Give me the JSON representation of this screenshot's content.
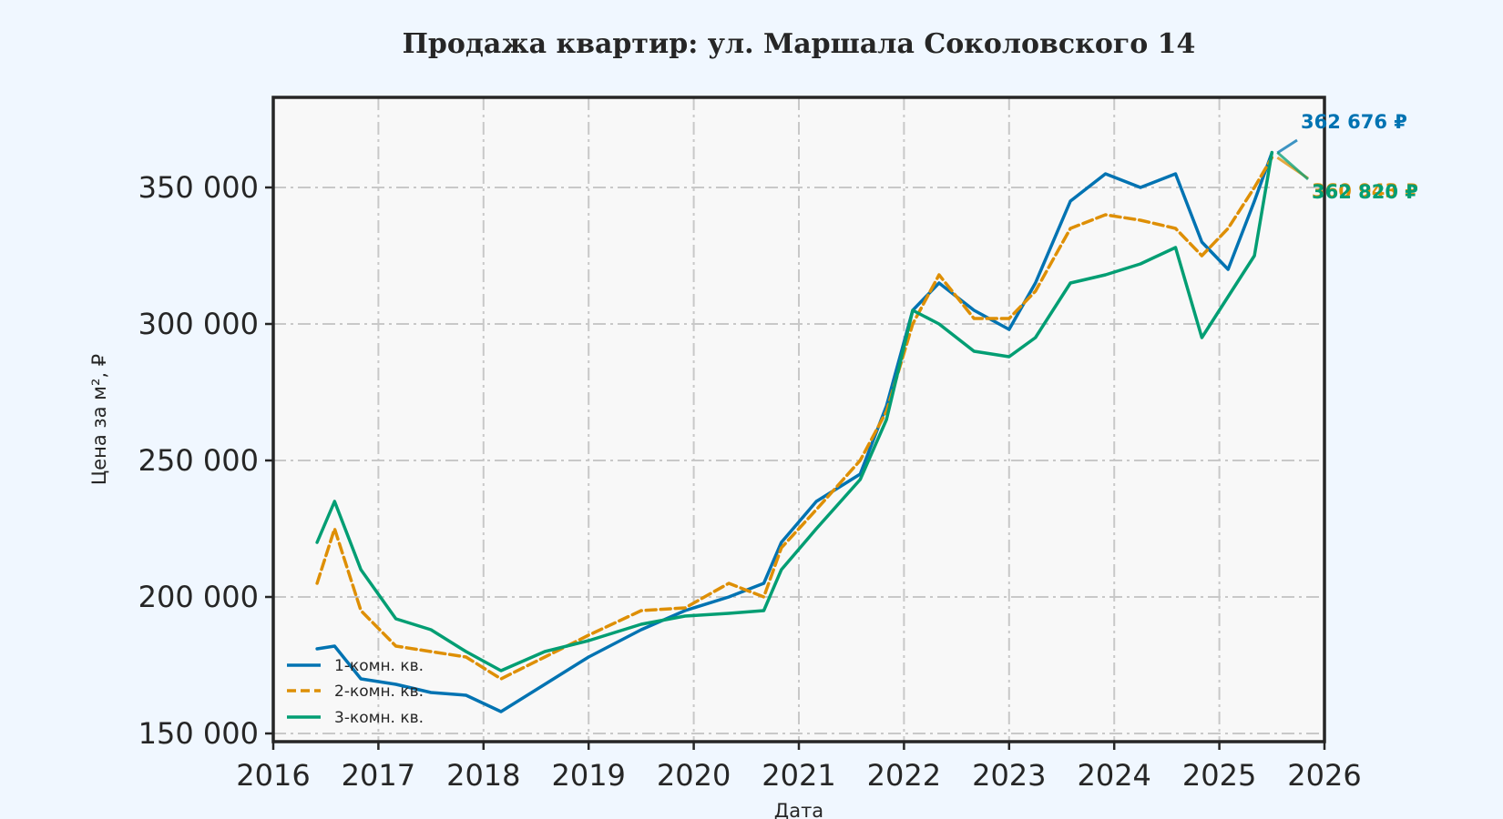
{
  "chart_data": {
    "type": "line",
    "title": "Продажа квартир: ул. Маршала Соколовского 14",
    "xlabel": "Дата",
    "ylabel": "Цена за м², ₽",
    "xlim": [
      2016,
      2026
    ],
    "ylim": [
      147000,
      383000
    ],
    "x_ticks": [
      "2016",
      "2017",
      "2018",
      "2019",
      "2020",
      "2021",
      "2022",
      "2023",
      "2024",
      "2025",
      "2026"
    ],
    "y_ticks": [
      {
        "value": 150000,
        "label": "150 000"
      },
      {
        "value": 200000,
        "label": "200 000"
      },
      {
        "value": 250000,
        "label": "250 000"
      },
      {
        "value": 300000,
        "label": "300 000"
      },
      {
        "value": 350000,
        "label": "350 000"
      }
    ],
    "grid": true,
    "legend_position": "lower-left",
    "series": [
      {
        "name": "1-комн. кв.",
        "color": "#0173b2",
        "dash": "solid",
        "x": [
          "2016-06",
          "2016-08",
          "2016-11",
          "2017-03",
          "2017-07",
          "2017-11",
          "2018-03",
          "2018-08",
          "2019-01",
          "2019-07",
          "2019-12",
          "2020-05",
          "2020-09",
          "2020-11",
          "2021-03",
          "2021-08",
          "2021-11",
          "2022-02",
          "2022-05",
          "2022-09",
          "2023-01",
          "2023-04",
          "2023-08",
          "2023-12",
          "2024-04",
          "2024-08",
          "2024-11",
          "2025-02",
          "2025-05",
          "2025-07"
        ],
        "y": [
          181000,
          182000,
          170000,
          168000,
          165000,
          164000,
          158000,
          168000,
          178000,
          188000,
          195000,
          200000,
          205000,
          220000,
          235000,
          245000,
          270000,
          305000,
          315000,
          305000,
          298000,
          315000,
          345000,
          355000,
          350000,
          355000,
          330000,
          320000,
          345000,
          362676
        ]
      },
      {
        "name": "2-комн. кв.",
        "color": "#de8f05",
        "dash": "dashed",
        "x": [
          "2016-06",
          "2016-08",
          "2016-11",
          "2017-03",
          "2017-07",
          "2017-11",
          "2018-03",
          "2018-08",
          "2019-01",
          "2019-07",
          "2019-12",
          "2020-05",
          "2020-09",
          "2020-11",
          "2021-03",
          "2021-08",
          "2021-11",
          "2022-02",
          "2022-05",
          "2022-09",
          "2023-01",
          "2023-04",
          "2023-08",
          "2023-12",
          "2024-04",
          "2024-08",
          "2024-11",
          "2025-02",
          "2025-05",
          "2025-07"
        ],
        "y": [
          205000,
          225000,
          195000,
          182000,
          180000,
          178000,
          170000,
          178000,
          186000,
          195000,
          196000,
          205000,
          200000,
          218000,
          232000,
          250000,
          268000,
          300000,
          318000,
          302000,
          302000,
          312000,
          335000,
          340000,
          338000,
          335000,
          325000,
          335000,
          350000,
          360943
        ]
      },
      {
        "name": "3-комн. кв.",
        "color": "#029e73",
        "dash": "solid",
        "x": [
          "2016-06",
          "2016-08",
          "2016-11",
          "2017-03",
          "2017-07",
          "2017-11",
          "2018-03",
          "2018-08",
          "2019-01",
          "2019-07",
          "2019-12",
          "2020-05",
          "2020-09",
          "2020-11",
          "2021-03",
          "2021-08",
          "2021-11",
          "2022-02",
          "2022-05",
          "2022-09",
          "2023-01",
          "2023-04",
          "2023-08",
          "2023-12",
          "2024-04",
          "2024-08",
          "2024-11",
          "2025-02",
          "2025-05",
          "2025-07"
        ],
        "y": [
          220000,
          235000,
          210000,
          192000,
          188000,
          180000,
          173000,
          180000,
          184000,
          190000,
          193000,
          194000,
          195000,
          210000,
          225000,
          243000,
          265000,
          305000,
          300000,
          290000,
          288000,
          295000,
          315000,
          318000,
          322000,
          328000,
          295000,
          310000,
          325000,
          362820
        ]
      }
    ],
    "annotations": [
      {
        "label": "362 676 ₽",
        "color": "#0173b2",
        "series": 0
      },
      {
        "label": "360 943 ₽",
        "color": "#de8f05",
        "series": 1
      },
      {
        "label": "362 820 ₽",
        "color": "#029e73",
        "series": 2
      }
    ]
  }
}
